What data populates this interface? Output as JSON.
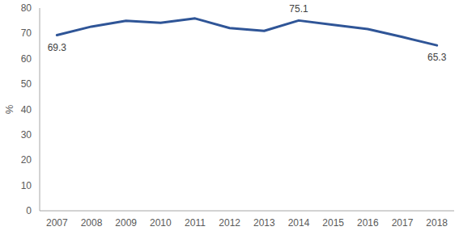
{
  "chart_data": {
    "type": "line",
    "y_label": "%",
    "categories": [
      "2007",
      "2008",
      "2009",
      "2010",
      "2011",
      "2012",
      "2013",
      "2014",
      "2015",
      "2016",
      "2017",
      "2018"
    ],
    "values": [
      69.3,
      72.7,
      75.0,
      74.2,
      75.9,
      72.1,
      71.0,
      75.1,
      73.4,
      71.7,
      68.6,
      65.3
    ],
    "value_labels": [
      "69.3",
      null,
      null,
      null,
      null,
      null,
      null,
      "75.1",
      null,
      null,
      null,
      "65.3"
    ],
    "data_labels": true,
    "color": "#2f5597",
    "ylim": [
      0,
      80
    ],
    "yticks": [
      0,
      10,
      20,
      30,
      40,
      50,
      60,
      70,
      80
    ],
    "grid": false
  }
}
